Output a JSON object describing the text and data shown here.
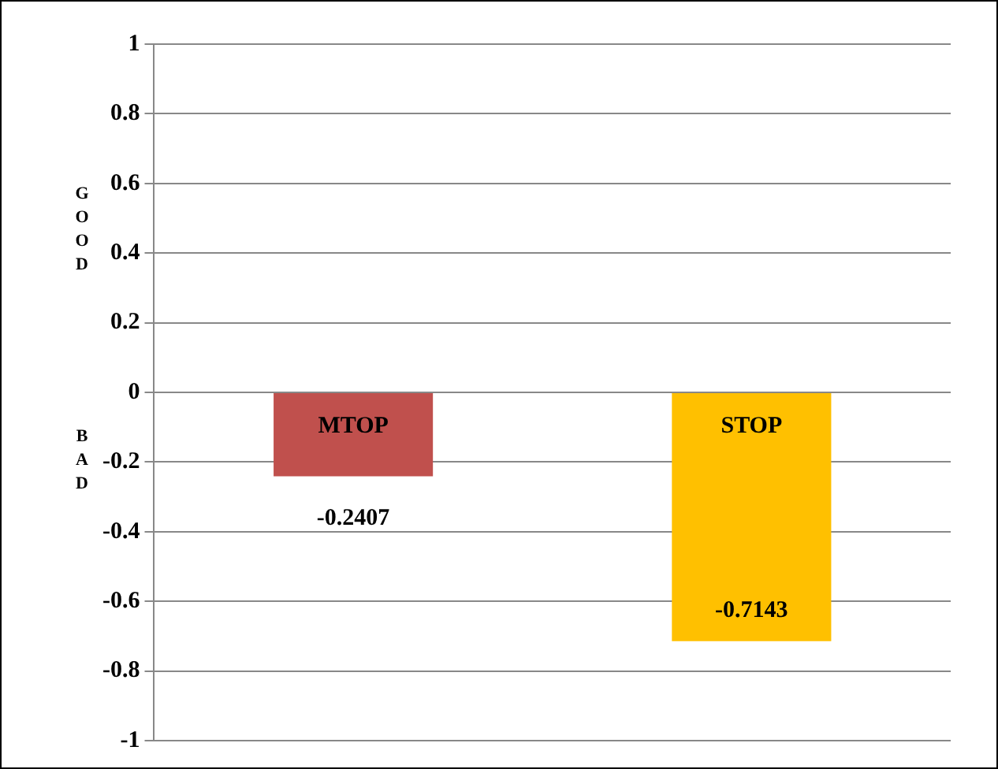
{
  "chart_data": {
    "type": "bar",
    "categories": [
      "MTOP",
      "STOP"
    ],
    "values": [
      -0.2407,
      -0.7143
    ],
    "colors": [
      "#c0504d",
      "#ffc000"
    ],
    "ylim": [
      -1,
      1
    ],
    "yticks": [
      -1,
      -0.8,
      -0.6,
      -0.4,
      -0.2,
      0,
      0.2,
      0.4,
      0.6,
      0.8,
      1
    ],
    "grid": "y",
    "legend": false,
    "data_labels": true,
    "annotations": [
      "GOOD",
      "BAD"
    ]
  }
}
